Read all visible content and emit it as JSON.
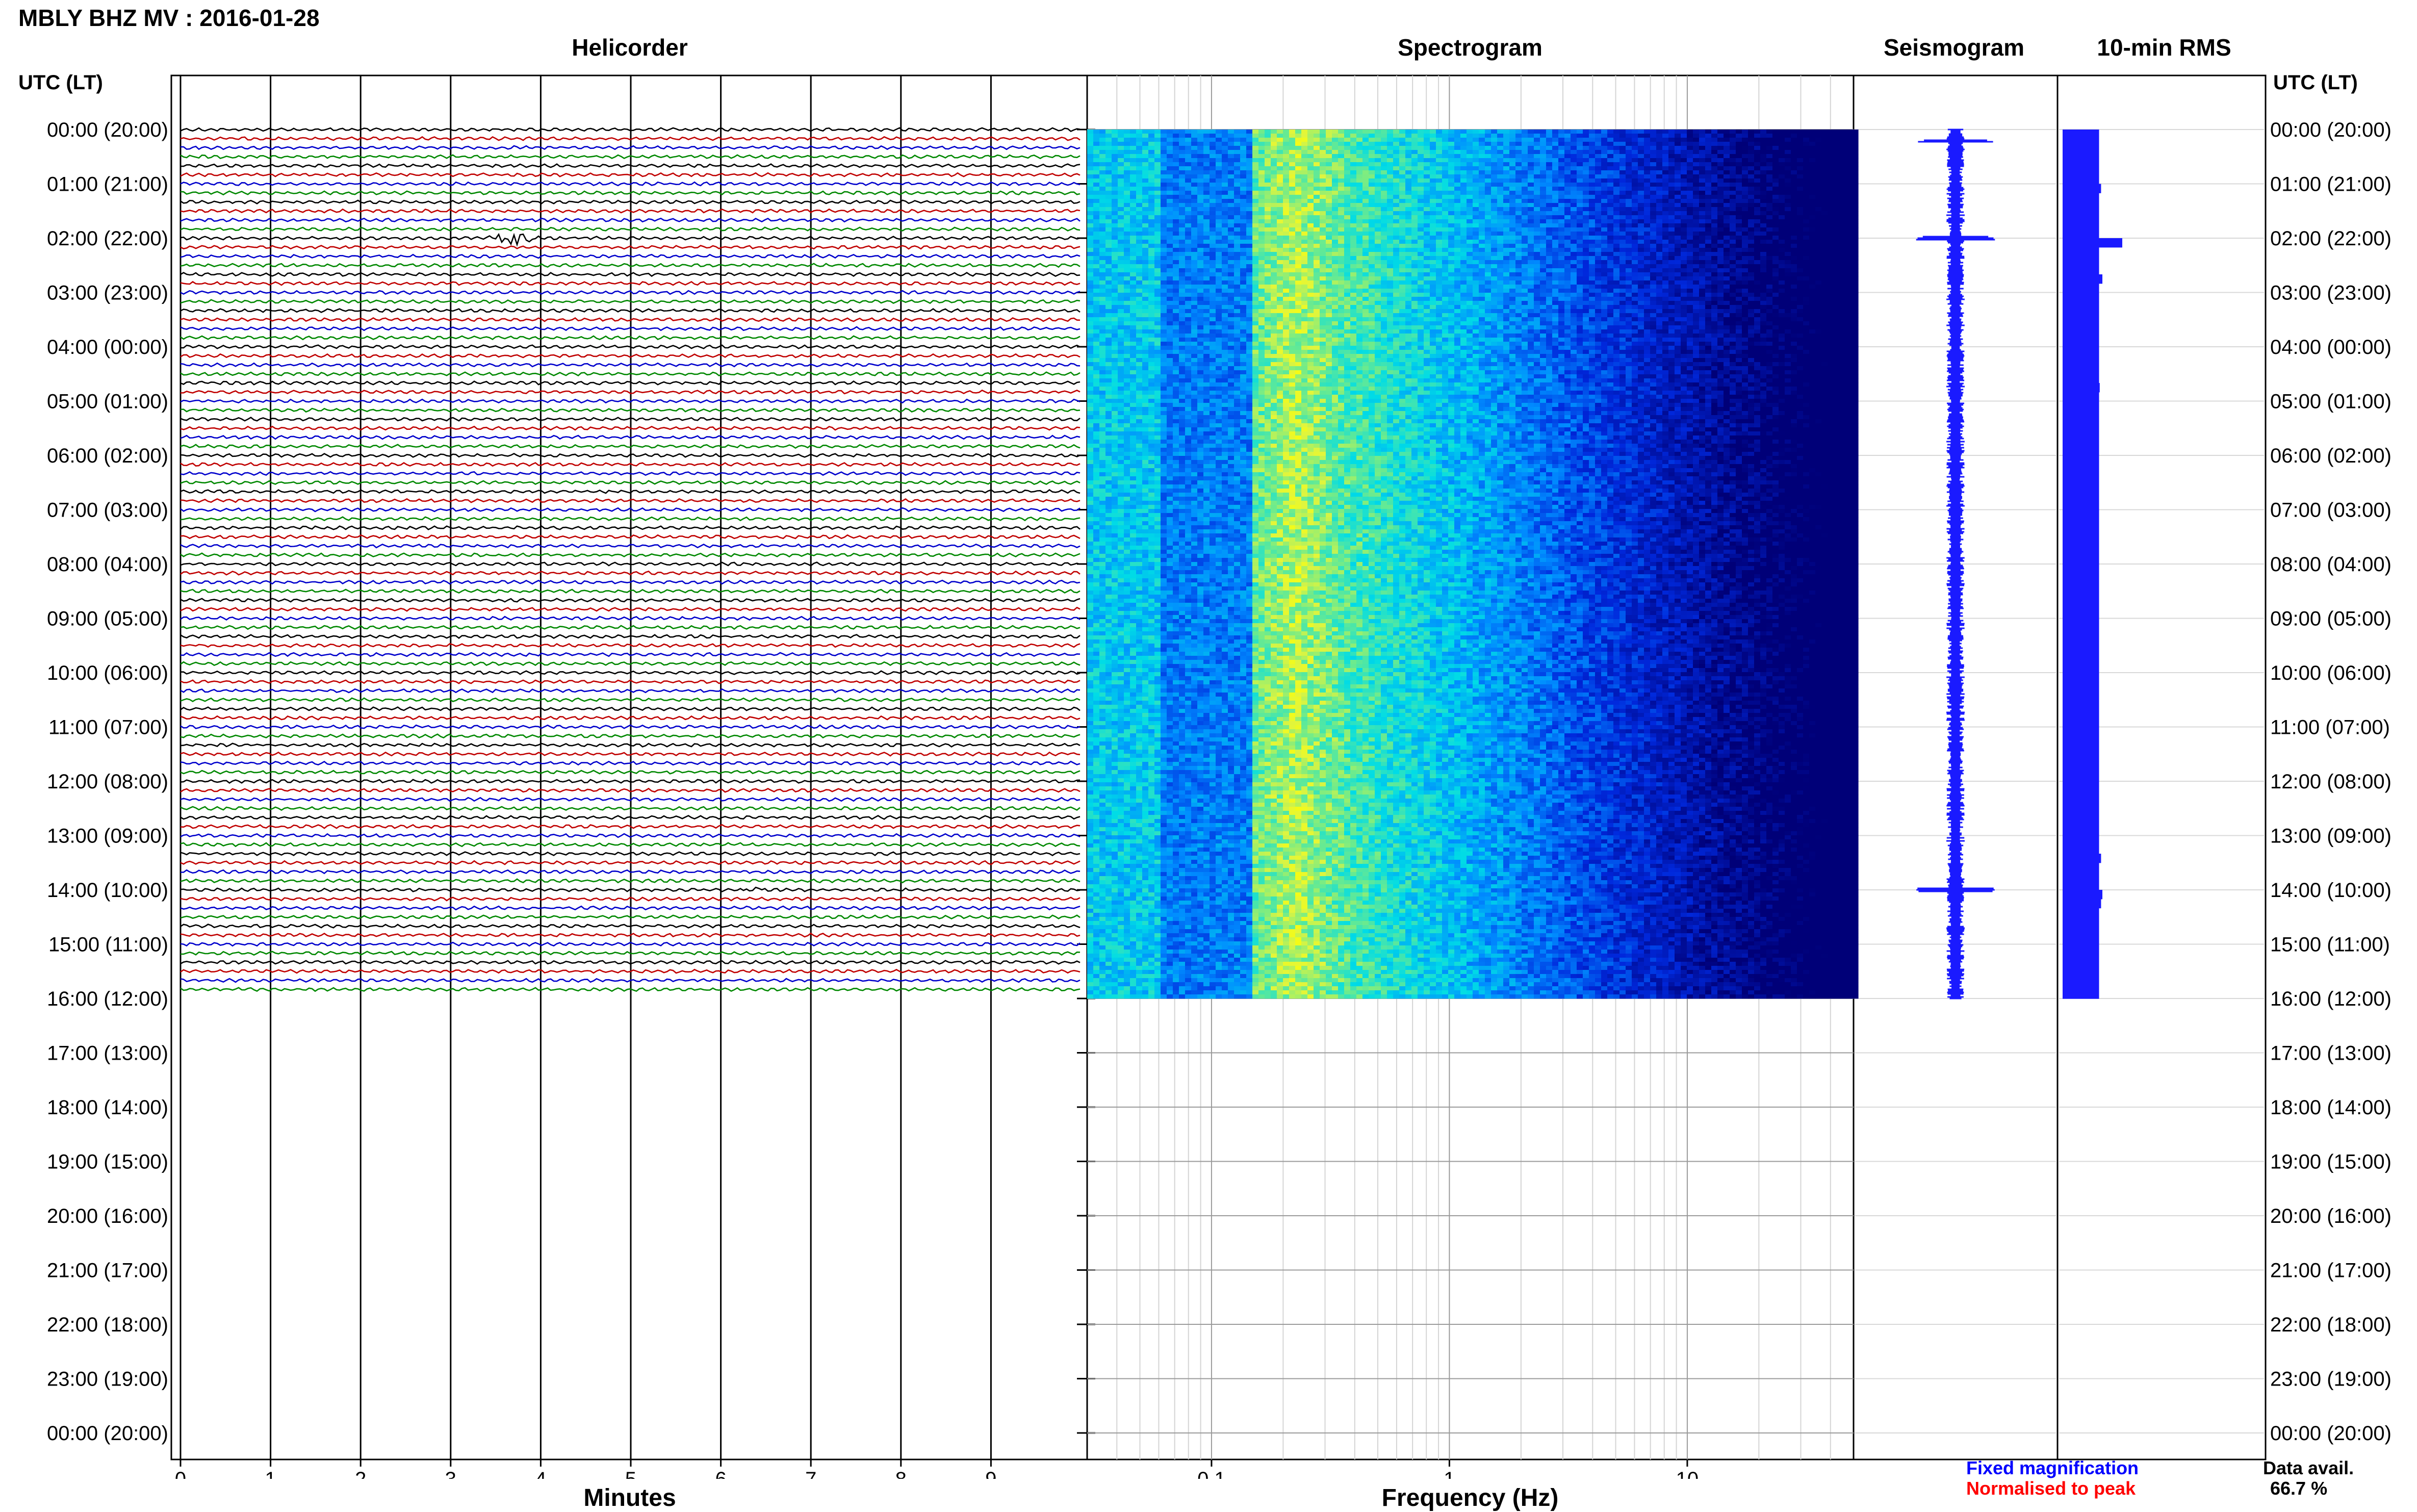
{
  "header": {
    "title": "MBLY BHZ MV : 2016-01-28",
    "utc_label_left": "UTC (LT)",
    "utc_label_right": "UTC (LT)"
  },
  "panels": {
    "helicorder": "Helicorder",
    "spectrogram": "Spectrogram",
    "seismogram": "Seismogram",
    "rms": "10-min RMS"
  },
  "time_labels": [
    "00:00 (20:00)",
    "01:00 (21:00)",
    "02:00 (22:00)",
    "03:00 (23:00)",
    "04:00 (00:00)",
    "05:00 (01:00)",
    "06:00 (02:00)",
    "07:00 (03:00)",
    "08:00 (04:00)",
    "09:00 (05:00)",
    "10:00 (06:00)",
    "11:00 (07:00)",
    "12:00 (08:00)",
    "13:00 (09:00)",
    "14:00 (10:00)",
    "15:00 (11:00)",
    "16:00 (12:00)",
    "17:00 (13:00)",
    "18:00 (14:00)",
    "19:00 (15:00)",
    "20:00 (16:00)",
    "21:00 (17:00)",
    "22:00 (18:00)",
    "23:00 (19:00)",
    "00:00 (20:00)"
  ],
  "footer": {
    "legend_fixed": "Fixed magnification",
    "legend_norm": "Normalised to peak",
    "data_avail_label": "Data avail.",
    "data_avail_value": "66.7 %"
  },
  "colors": {
    "trace_cycle": [
      "#000000",
      "#c00000",
      "#0000cc",
      "#008800"
    ],
    "seismogram": "#1a1aff",
    "rms": "#1a1aff",
    "legend_fixed": "#0000ff",
    "legend_norm": "#ff0000"
  },
  "chart_data": [
    {
      "type": "line",
      "name": "helicorder",
      "xlabel": "Minutes",
      "x_ticks": [
        0,
        1,
        2,
        3,
        4,
        5,
        6,
        7,
        8,
        9
      ],
      "xlim": [
        0,
        10
      ],
      "hours_recorded": 16,
      "traces_per_hour": 6,
      "events": [
        {
          "hour": 2,
          "minute": 3.7,
          "amplitude": "large"
        },
        {
          "hour": 14,
          "minute": 6.35,
          "amplitude": "medium"
        }
      ]
    },
    {
      "type": "heatmap",
      "name": "spectrogram",
      "xlabel": "Frequency (Hz)",
      "x_scale": "log",
      "xlim": [
        0.03,
        50
      ],
      "x_tick_labels": [
        "0.1",
        "1",
        "10"
      ],
      "x_ticks": [
        0.1,
        1,
        10
      ],
      "peak_band_hz": [
        0.15,
        0.35
      ]
    },
    {
      "type": "line",
      "name": "seismogram",
      "hours_recorded": 16,
      "spikes_hours": [
        0.2,
        2.0,
        14.0
      ]
    },
    {
      "type": "bar",
      "name": "rms",
      "hours_recorded": 16,
      "values": [
        0.55,
        0.55,
        0.55,
        0.55,
        0.55,
        0.55,
        0.58,
        0.55,
        0.55,
        0.55,
        0.55,
        0.55,
        0.9,
        0.55,
        0.55,
        0.55,
        0.6,
        0.55,
        0.55,
        0.55,
        0.55,
        0.55,
        0.55,
        0.55,
        0.55,
        0.55,
        0.55,
        0.55,
        0.56,
        0.55,
        0.55,
        0.55,
        0.55,
        0.55,
        0.55,
        0.55,
        0.55,
        0.55,
        0.55,
        0.55,
        0.55,
        0.55,
        0.55,
        0.55,
        0.55,
        0.55,
        0.55,
        0.55,
        0.55,
        0.55,
        0.55,
        0.55,
        0.55,
        0.55,
        0.55,
        0.55,
        0.55,
        0.55,
        0.55,
        0.55,
        0.55,
        0.55,
        0.55,
        0.55,
        0.55,
        0.55,
        0.55,
        0.55,
        0.55,
        0.55,
        0.55,
        0.55,
        0.55,
        0.55,
        0.55,
        0.55,
        0.55,
        0.55,
        0.55,
        0.55,
        0.58,
        0.55,
        0.55,
        0.55,
        0.6,
        0.58,
        0.55,
        0.55,
        0.55,
        0.55,
        0.55,
        0.55,
        0.55,
        0.55,
        0.55,
        0.55
      ]
    }
  ]
}
